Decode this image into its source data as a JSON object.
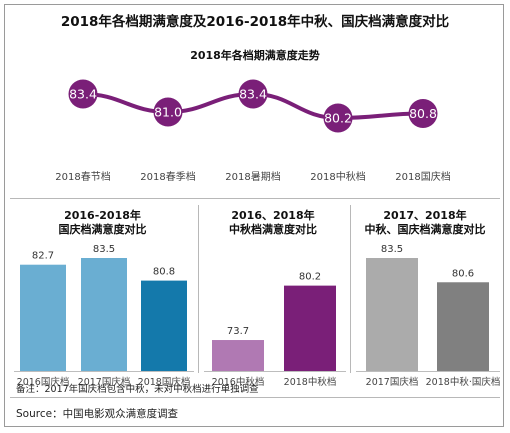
{
  "title": "2018年各档期满意度及2016-2018年中秋、国庆档满意度对比",
  "note": "备注：2017年国庆档包含中秋，未对中秋档进行单独调查",
  "source": "Source：中国电影观众满意度调查",
  "colors": {
    "line": "#7a1f78",
    "panel1": [
      "#6aaed2",
      "#6aaed2",
      "#1479ab"
    ],
    "panel2": [
      "#b079b3",
      "#7a1f78"
    ],
    "panel3": [
      "#ababab",
      "#808080"
    ]
  },
  "chart_data": [
    {
      "type": "line",
      "title": "2018年各档期满意度走势",
      "categories": [
        "2018春节档",
        "2018春季档",
        "2018暑期档",
        "2018中秋档",
        "2018国庆档"
      ],
      "values": [
        83.4,
        81.0,
        83.4,
        80.2,
        80.8
      ],
      "value_labels": [
        "83.4",
        "81.0",
        "83.4",
        "80.2",
        "80.8"
      ]
    },
    {
      "type": "bar",
      "title_lines": [
        "2016-2018年",
        "国庆档满意度对比"
      ],
      "categories": [
        "2016国庆档",
        "2017国庆档",
        "2018国庆档"
      ],
      "values": [
        82.7,
        83.5,
        80.8
      ],
      "value_labels": [
        "82.7",
        "83.5",
        "80.8"
      ]
    },
    {
      "type": "bar",
      "title_lines": [
        "2016、2018年",
        "中秋档满意度对比"
      ],
      "categories": [
        "2016中秋档",
        "2018中秋档"
      ],
      "values": [
        73.7,
        80.2
      ],
      "value_labels": [
        "73.7",
        "80.2"
      ]
    },
    {
      "type": "bar",
      "title_lines": [
        "2017、2018年",
        "中秋、国庆档满意度对比"
      ],
      "categories": [
        "2017国庆档",
        "2018中秋·国庆档"
      ],
      "values": [
        83.5,
        80.6
      ],
      "value_labels": [
        "83.5",
        "80.6"
      ]
    }
  ]
}
